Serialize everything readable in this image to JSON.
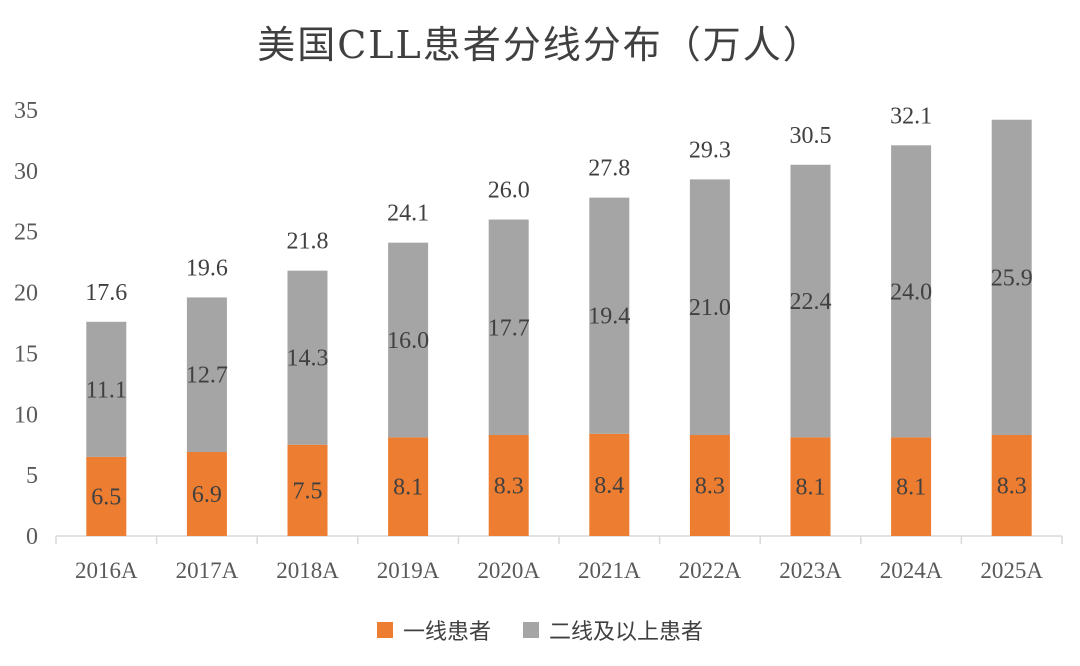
{
  "chart_data": {
    "type": "bar",
    "stacked": true,
    "title": "美国CLL患者分线分布（万人）",
    "categories": [
      "2016A",
      "2017A",
      "2018A",
      "2019A",
      "2020A",
      "2021A",
      "2022A",
      "2023A",
      "2024A",
      "2025A"
    ],
    "series": [
      {
        "name": "一线患者",
        "values": [
          6.5,
          6.9,
          7.5,
          8.1,
          8.3,
          8.4,
          8.3,
          8.1,
          8.1,
          8.3
        ],
        "color": "#ED7D31"
      },
      {
        "name": "二线及以上患者",
        "values": [
          11.1,
          12.7,
          14.3,
          16.0,
          17.7,
          19.4,
          21.0,
          22.4,
          24.0,
          25.9
        ],
        "color": "#A5A5A5"
      }
    ],
    "segment_labels": [
      [
        "6.5",
        "6.9",
        "7.5",
        "8.1",
        "8.3",
        "8.4",
        "8.3",
        "8.1",
        "8.1",
        "8.3"
      ],
      [
        "11.1",
        "12.7",
        "14.3",
        "16.0",
        "17.7",
        "19.4",
        "21.0",
        "22.4",
        "24.0",
        "25.9"
      ]
    ],
    "totals": [
      "17.6",
      "19.6",
      "21.8",
      "24.1",
      "26.0",
      "27.8",
      "29.3",
      "30.5",
      "32.1",
      ""
    ],
    "ylim": [
      0,
      35
    ],
    "yticks": [
      0,
      5,
      10,
      15,
      20,
      25,
      30,
      35
    ],
    "grid": false,
    "legend_position": "bottom"
  }
}
